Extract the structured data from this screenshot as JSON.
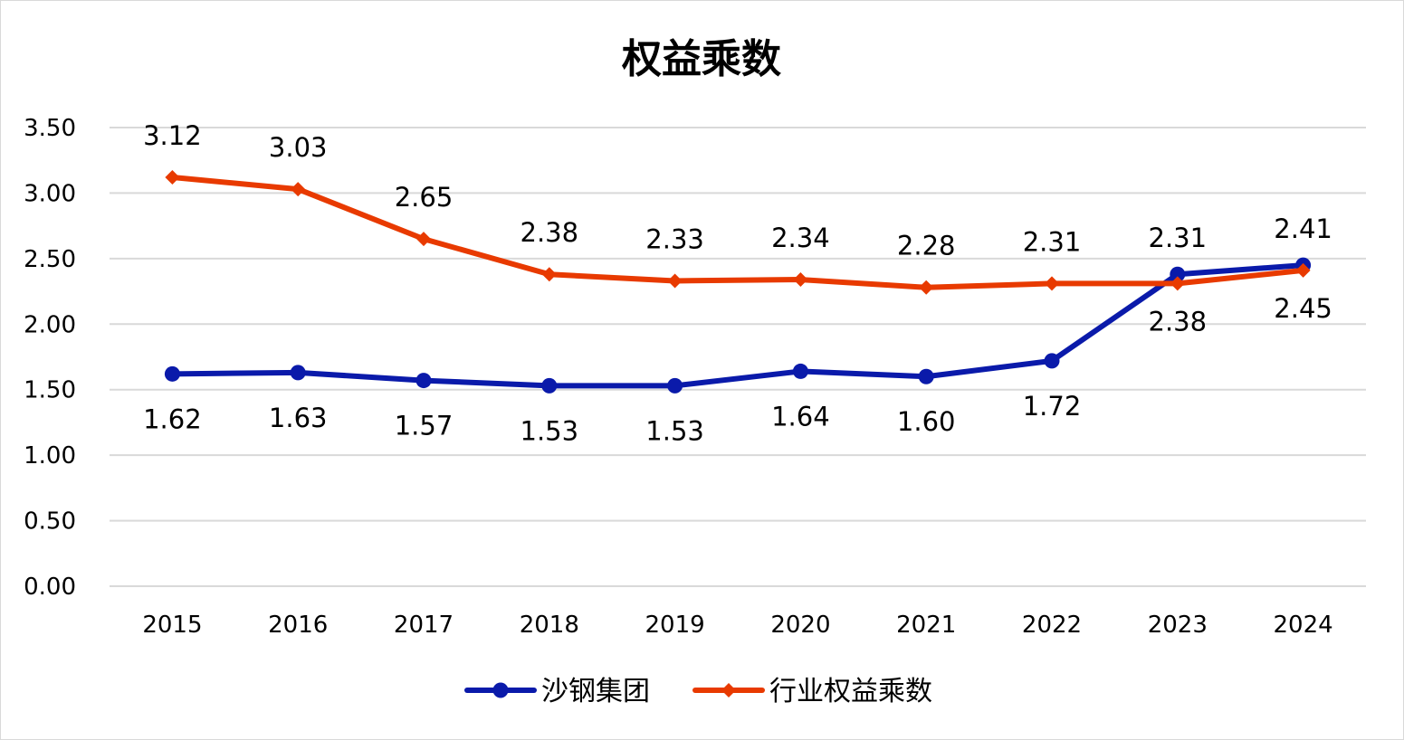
{
  "chart_data": {
    "type": "line",
    "title": "权益乘数",
    "xlabel": "",
    "ylabel": "",
    "ylim": [
      0,
      3.5
    ],
    "yticks": [
      "0.00",
      "0.50",
      "1.00",
      "1.50",
      "2.00",
      "2.50",
      "3.00",
      "3.50"
    ],
    "categories": [
      "2015",
      "2016",
      "2017",
      "2018",
      "2019",
      "2020",
      "2021",
      "2022",
      "2023",
      "2024"
    ],
    "grid": true,
    "legend_position": "bottom",
    "series": [
      {
        "name": "沙钢集团",
        "color": "#0a1aaa",
        "marker": "circle",
        "values": [
          1.62,
          1.63,
          1.57,
          1.53,
          1.53,
          1.64,
          1.6,
          1.72,
          2.38,
          2.45
        ],
        "labels": [
          "1.62",
          "1.63",
          "1.57",
          "1.53",
          "1.53",
          "1.64",
          "1.60",
          "1.72",
          "2.38",
          "2.45"
        ]
      },
      {
        "name": "行业权益乘数",
        "color": "#e83a00",
        "marker": "diamond",
        "values": [
          3.12,
          3.03,
          2.65,
          2.38,
          2.33,
          2.34,
          2.28,
          2.31,
          2.31,
          2.41
        ],
        "labels": [
          "3.12",
          "3.03",
          "2.65",
          "2.38",
          "2.33",
          "2.34",
          "2.28",
          "2.31",
          "2.31",
          "2.41"
        ]
      }
    ]
  }
}
